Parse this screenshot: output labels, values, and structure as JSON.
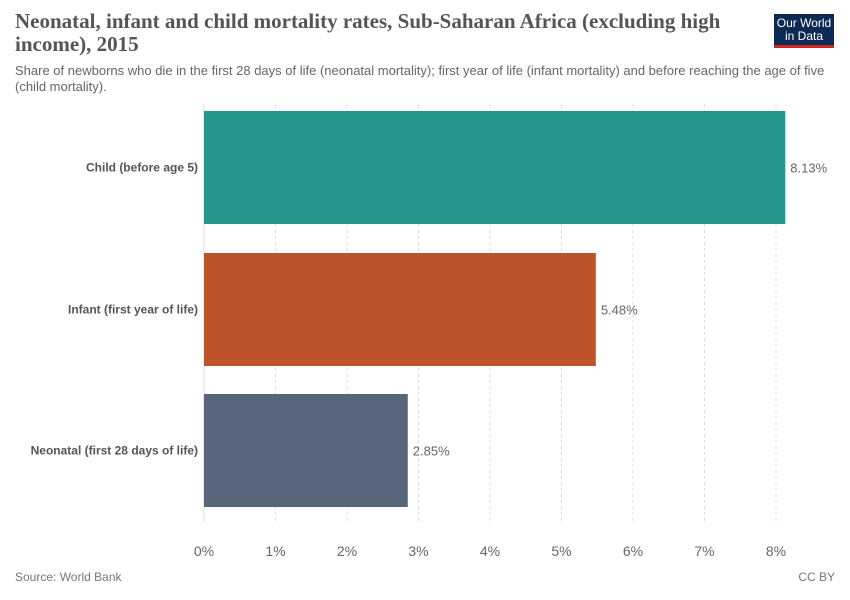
{
  "header": {
    "title": "Neonatal, infant and child mortality rates, Sub-Saharan Africa (excluding high income), 2015",
    "subtitle": "Share of newborns who die in the first 28 days of life (neonatal mortality); first year of life (infant mortality) and before reaching the age of five (child mortality).",
    "logo_line1": "Our World",
    "logo_line2": "in Data"
  },
  "footer": {
    "source": "Source: World Bank",
    "license": "CC BY"
  },
  "colors": {
    "child": "#24968a",
    "infant": "#bd532b",
    "neonatal": "#58657a",
    "grid": "#dddddd",
    "logo_bg": "#0c2a53",
    "logo_accent": "#ce261e"
  },
  "chart_data": {
    "type": "bar",
    "orientation": "horizontal",
    "categories": [
      "Child (before age 5)",
      "Infant (first year of life)",
      "Neonatal (first 28 days of life)"
    ],
    "values": [
      8.13,
      5.48,
      2.85
    ],
    "value_labels": [
      "8.13%",
      "5.48%",
      "2.85%"
    ],
    "bar_colors": [
      "#24968a",
      "#bd532b",
      "#58657a"
    ],
    "xlim": [
      0,
      8
    ],
    "xticks": [
      0,
      1,
      2,
      3,
      4,
      5,
      6,
      7,
      8
    ],
    "xtick_labels": [
      "0%",
      "1%",
      "2%",
      "3%",
      "4%",
      "5%",
      "6%",
      "7%",
      "8%"
    ],
    "grid": true,
    "title": "Neonatal, infant and child mortality rates, Sub-Saharan Africa (excluding high income), 2015",
    "xlabel": "",
    "ylabel": ""
  }
}
